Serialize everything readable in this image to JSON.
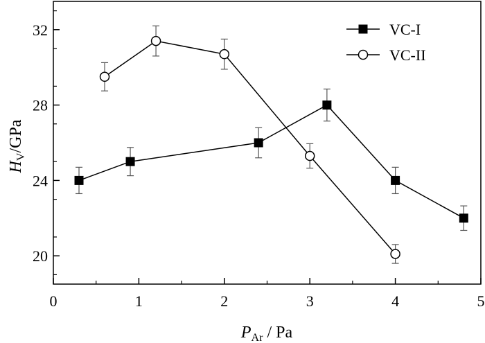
{
  "chart_data": {
    "type": "line",
    "xlabel": {
      "main": "P",
      "sub": "Ar",
      "unit": " / Pa"
    },
    "ylabel": {
      "main": "H",
      "sub": "V",
      "unit": "/GPa"
    },
    "xlim": [
      0,
      5
    ],
    "ylim": [
      18.5,
      33.5
    ],
    "xticks": [
      "0",
      "1",
      "2",
      "3",
      "4",
      "5"
    ],
    "yticks": [
      "20",
      "24",
      "28",
      "32"
    ],
    "grid": false,
    "legend_position": "top-right",
    "series": [
      {
        "name": "VC-I",
        "marker": "filled-square",
        "x": [
          0.3,
          0.9,
          2.4,
          3.2,
          4.0,
          4.8
        ],
        "y": [
          24.0,
          25.0,
          26.0,
          28.0,
          24.0,
          22.0
        ],
        "err": [
          0.7,
          0.75,
          0.8,
          0.85,
          0.7,
          0.65
        ]
      },
      {
        "name": "VC-II",
        "marker": "open-circle",
        "x": [
          0.6,
          1.2,
          2.0,
          3.0,
          4.0
        ],
        "y": [
          29.5,
          31.4,
          30.7,
          25.3,
          20.1
        ],
        "err": [
          0.75,
          0.8,
          0.8,
          0.65,
          0.5
        ]
      }
    ]
  }
}
